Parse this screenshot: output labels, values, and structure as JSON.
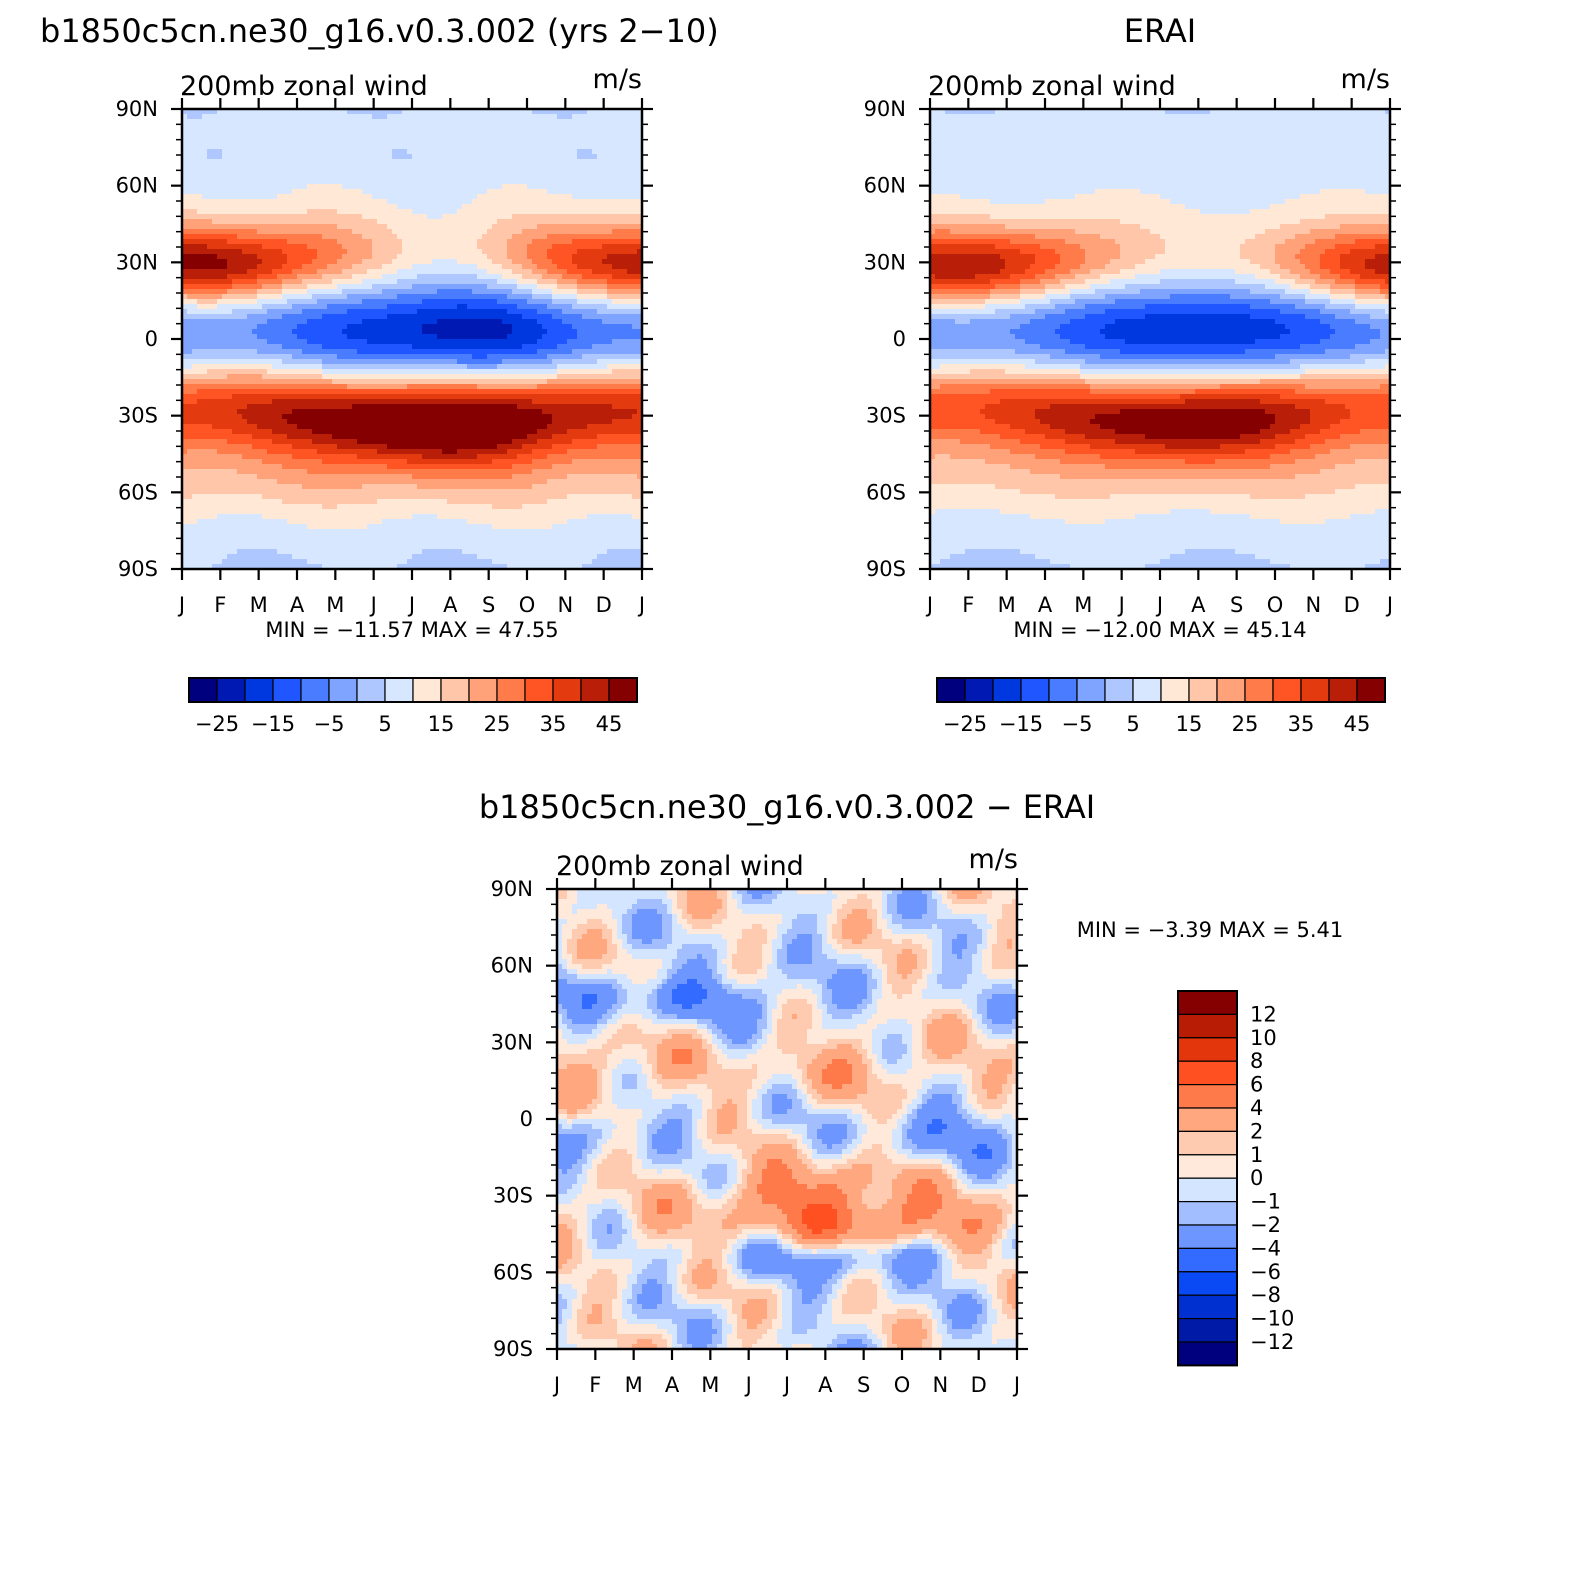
{
  "colors": {
    "background": "#ffffff",
    "frame": "#000000",
    "palette_16": [
      "#00007f",
      "#0019b3",
      "#0038e0",
      "#1f56ff",
      "#4a7cff",
      "#7ea4ff",
      "#aec8ff",
      "#d6e7ff",
      "#ffe8d6",
      "#ffc6aa",
      "#ffa27a",
      "#ff7b4a",
      "#ff5424",
      "#e43a10",
      "#b91e08",
      "#850000"
    ],
    "palette_diff": [
      "#00007f",
      "#001aa8",
      "#0030d0",
      "#0a4af5",
      "#336aff",
      "#6e96ff",
      "#a2beff",
      "#d3e5ff",
      "#ffe9da",
      "#ffcbb0",
      "#ffa77f",
      "#ff7a4a",
      "#ff5022",
      "#e3360d",
      "#b81c05",
      "#850000"
    ]
  },
  "panels": [
    {
      "id": "model",
      "title": "b1850c5cn.ne30_g16.v0.3.002 (yrs 2−10)",
      "left_label": "200mb  zonal  wind",
      "right_label": "m/s",
      "min_max": "MIN  =  −11.57  MAX  =    47.55"
    },
    {
      "id": "obs",
      "title": "ERAI",
      "left_label": "200mb  zonal  wind",
      "right_label": "m/s",
      "min_max": "MIN  =  −12.00  MAX  =    45.14"
    },
    {
      "id": "diff",
      "title": "b1850c5cn.ne30_g16.v0.3.002  −  ERAI",
      "left_label": "200mb  zonal  wind",
      "right_label": "m/s",
      "min_max": "MIN  =    −3.39  MAX  =     5.41"
    }
  ],
  "chart_data": [
    {
      "type": "heatmap",
      "title": "b1850c5cn.ne30_g16.v0.3.002 (yrs 2−10)",
      "subtitle_left": "200mb  zonal  wind",
      "subtitle_right": "m/s",
      "x": [
        "J",
        "F",
        "M",
        "A",
        "M",
        "J",
        "J",
        "A",
        "S",
        "O",
        "N",
        "D",
        "J"
      ],
      "y_ticks": [
        "90N",
        "60N",
        "30N",
        "0",
        "30S",
        "60S",
        "90S"
      ],
      "y_range": [
        -90,
        90
      ],
      "field_min": -11.57,
      "field_max": 47.55,
      "colorbar_labels": [
        "−25",
        "−15",
        "−5",
        "5",
        "15",
        "25",
        "35",
        "45"
      ],
      "levels": [
        -30,
        -25,
        -20,
        -15,
        -10,
        -5,
        0,
        5,
        10,
        15,
        20,
        25,
        30,
        35,
        40,
        45
      ],
      "features": {
        "nh_jet": {
          "max_month": 0.6,
          "lat": 29,
          "max": 46,
          "min_month": 7,
          "min": 8
        },
        "sh_jet": {
          "max_month": 6.5,
          "lat": -29,
          "max": 47,
          "min": 30
        },
        "tropics_min": {
          "month": 7,
          "lat": 5,
          "min": -11.5
        }
      }
    },
    {
      "type": "heatmap",
      "title": "ERAI",
      "subtitle_left": "200mb  zonal  wind",
      "subtitle_right": "m/s",
      "x": [
        "J",
        "F",
        "M",
        "A",
        "M",
        "J",
        "J",
        "A",
        "S",
        "O",
        "N",
        "D",
        "J"
      ],
      "y_ticks": [
        "90N",
        "60N",
        "30N",
        "0",
        "30S",
        "60S",
        "90S"
      ],
      "y_range": [
        -90,
        90
      ],
      "field_min": -12.0,
      "field_max": 45.14,
      "colorbar_labels": [
        "−25",
        "−15",
        "−5",
        "5",
        "15",
        "25",
        "35",
        "45"
      ],
      "levels": [
        -30,
        -25,
        -20,
        -15,
        -10,
        -5,
        0,
        5,
        10,
        15,
        20,
        25,
        30,
        35,
        40,
        45
      ],
      "features": {
        "nh_jet": {
          "max_month": 0.8,
          "lat": 30,
          "max": 45,
          "min_month": 7,
          "min": 8
        },
        "sh_jet": {
          "max_month": 6.5,
          "lat": -29,
          "max": 42,
          "min": 30
        },
        "tropics_min": {
          "month": 7,
          "lat": 5,
          "min": -12
        }
      }
    },
    {
      "type": "heatmap",
      "title": "b1850c5cn.ne30_g16.v0.3.002  −  ERAI",
      "subtitle_left": "200mb  zonal  wind",
      "subtitle_right": "m/s",
      "x": [
        "J",
        "F",
        "M",
        "A",
        "M",
        "J",
        "J",
        "A",
        "S",
        "O",
        "N",
        "D",
        "J"
      ],
      "y_ticks": [
        "90N",
        "60N",
        "30N",
        "0",
        "30S",
        "60S",
        "90S"
      ],
      "y_range": [
        -90,
        90
      ],
      "field_min": -3.39,
      "field_max": 5.41,
      "colorbar_labels": [
        "12",
        "10",
        "8",
        "6",
        "4",
        "2",
        "1",
        "0",
        "−1",
        "−2",
        "−4",
        "−6",
        "−8",
        "−10",
        "−12"
      ],
      "levels": [
        -12,
        -10,
        -8,
        -6,
        -4,
        -2,
        -1,
        0,
        1,
        2,
        4,
        6,
        8,
        10,
        12
      ]
    }
  ]
}
